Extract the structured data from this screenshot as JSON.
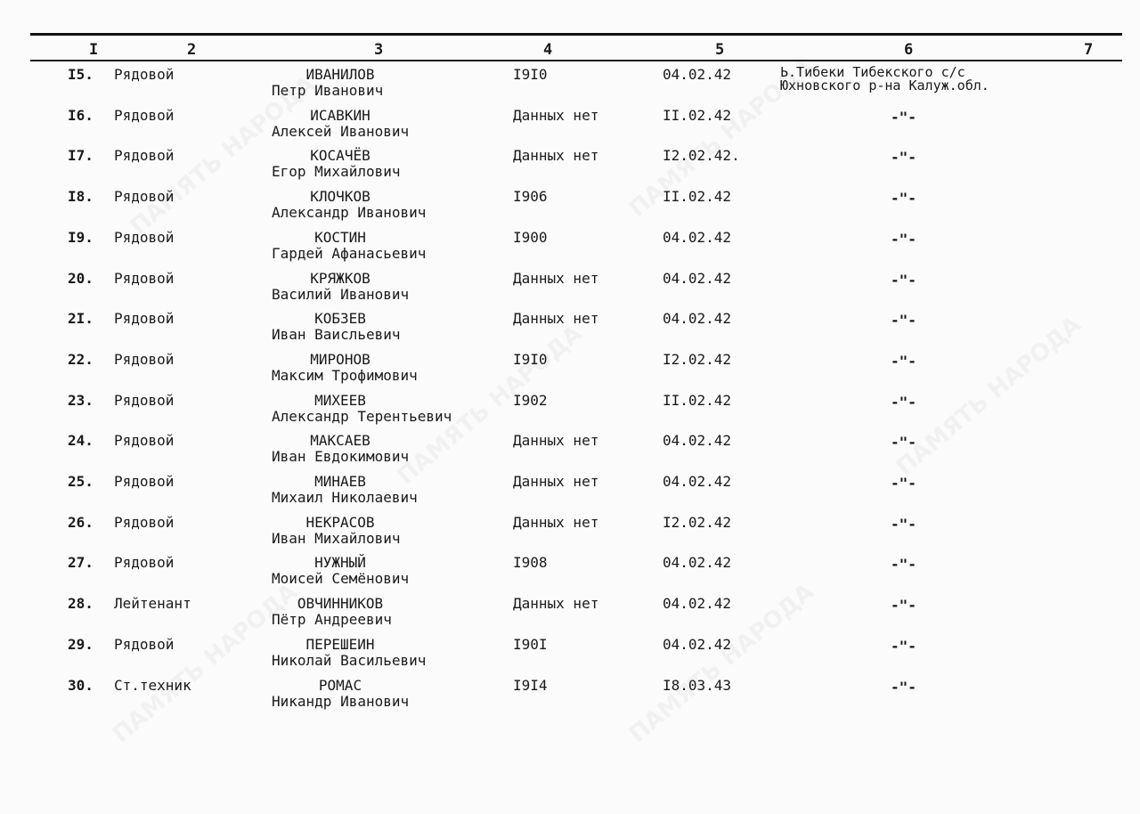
{
  "header": [
    "I",
    "2",
    "3",
    "4",
    "5",
    "6",
    "7"
  ],
  "rows": [
    {
      "num": "I5.",
      "rank": "Рядовой",
      "surname": "ИВАНИЛОВ",
      "given": "Петр  Иванович",
      "year": "I9I0",
      "date": "04.02.42",
      "place": [
        "Ь.Тибеки Тибекского с/с",
        "Юхновского р-на Калуж.обл."
      ]
    },
    {
      "num": "I6.",
      "rank": "Рядовой",
      "surname": "ИСАВКИН",
      "given": "Алексей Иванович",
      "year": "Данных нет",
      "date": "II.02.42",
      "ditto": "-\"-"
    },
    {
      "num": "I7.",
      "rank": "Рядовой",
      "surname": "КОСАЧЁВ",
      "given": "Егор Михайлович",
      "year": "Данных нет",
      "date": "I2.02.42.",
      "ditto": "-\"-"
    },
    {
      "num": "I8.",
      "rank": "Рядовой",
      "surname": "КЛОЧКОВ",
      "given": "Александр  Иванович",
      "year": "I906",
      "date": "II.02.42",
      "ditto": "-\"-"
    },
    {
      "num": "I9.",
      "rank": "Рядовой",
      "surname": "КОСТИН",
      "given": "Гардей Афанасьевич",
      "year": "I900",
      "date": "04.02.42",
      "ditto": "-\"-"
    },
    {
      "num": "20.",
      "rank": "Рядовой",
      "surname": "КРЯЖКОВ",
      "given": "Василий Иванович",
      "year": "Данных нет",
      "date": "04.02.42",
      "ditto": "-\"-"
    },
    {
      "num": "2I.",
      "rank": "Рядовой",
      "surname": "КОБЗЕВ",
      "given": "Иван Ваисльевич",
      "year": "Данных нет",
      "date": "04.02.42",
      "ditto": "-\"-"
    },
    {
      "num": "22.",
      "rank": "Рядовой",
      "surname": "МИРОНОВ",
      "given": "Максим Трофимович",
      "year": "I9I0",
      "date": "I2.02.42",
      "ditto": "-\"-"
    },
    {
      "num": "23.",
      "rank": "Рядовой",
      "surname": "МИХЕЕВ",
      "given": "Александр Терентьевич",
      "year": "I902",
      "date": "II.02.42",
      "ditto": "-\"-"
    },
    {
      "num": "24.",
      "rank": "Рядовой",
      "surname": "МАКСАЕВ",
      "given": "Иван Евдокимович",
      "year": "Данных нет",
      "date": "04.02.42",
      "ditto": "-\"-"
    },
    {
      "num": "25.",
      "rank": "Рядовой",
      "surname": "МИНАЕВ",
      "given": "Михаил Николаевич",
      "year": "Данных нет",
      "date": "04.02.42",
      "ditto": "-\"-"
    },
    {
      "num": "26.",
      "rank": "Рядовой",
      "surname": "НЕКРАСОВ",
      "given": "Иван Михайлович",
      "year": "Данных нет",
      "date": "I2.02.42",
      "ditto": "-\"-"
    },
    {
      "num": "27.",
      "rank": "Рядовой",
      "surname": "НУЖНЫЙ",
      "given": "Моисей Семёнович",
      "year": "I908",
      "date": "04.02.42",
      "ditto": "-\"-"
    },
    {
      "num": "28.",
      "rank": "Лейтенант",
      "surname": "ОВЧИННИКОВ",
      "given": "Пётр  Андреевич",
      "year": "Данных нет",
      "date": "04.02.42",
      "ditto": "-\"-"
    },
    {
      "num": "29.",
      "rank": "Рядовой",
      "surname": "ПЕРЕШЕИН",
      "given": "Николай Васильевич",
      "year": "I90I",
      "date": "04.02.42",
      "ditto": "-\"-"
    },
    {
      "num": "30.",
      "rank": "Ст.техник",
      "surname": "РОМАС",
      "given": "Никандр Иванович",
      "year": "I9I4",
      "date": "I8.03.43",
      "ditto": "-\"-"
    }
  ],
  "watermark": "ПАМЯТЬ НАРОДА"
}
